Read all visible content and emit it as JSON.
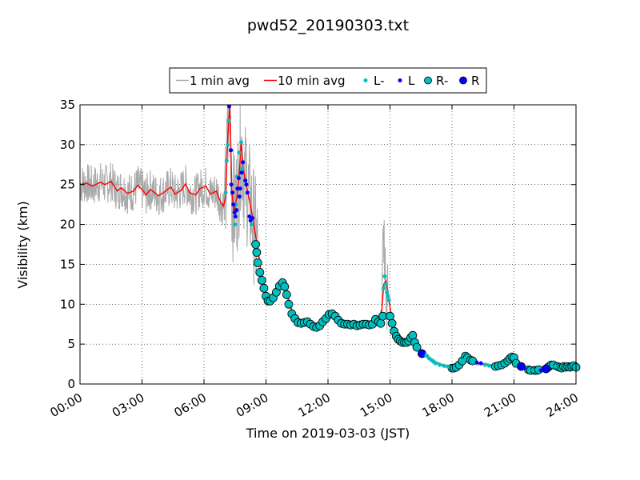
{
  "chart_data": {
    "type": "line",
    "title": "pwd52_20190303.txt",
    "xlabel": "Time on 2019-03-03 (JST)",
    "ylabel": "Visibility (km)",
    "x_unit": "hours",
    "xlim": [
      0,
      24
    ],
    "ylim": [
      0,
      35
    ],
    "x_ticks": [
      {
        "value": 0,
        "label": "00:00"
      },
      {
        "value": 3,
        "label": "03:00"
      },
      {
        "value": 6,
        "label": "06:00"
      },
      {
        "value": 9,
        "label": "09:00"
      },
      {
        "value": 12,
        "label": "12:00"
      },
      {
        "value": 15,
        "label": "15:00"
      },
      {
        "value": 18,
        "label": "18:00"
      },
      {
        "value": 21,
        "label": "21:00"
      },
      {
        "value": 24,
        "label": "24:00"
      }
    ],
    "y_ticks": [
      {
        "value": 0,
        "label": "0"
      },
      {
        "value": 5,
        "label": "5"
      },
      {
        "value": 10,
        "label": "10"
      },
      {
        "value": 15,
        "label": "15"
      },
      {
        "value": 20,
        "label": "20"
      },
      {
        "value": 25,
        "label": "25"
      },
      {
        "value": 30,
        "label": "30"
      },
      {
        "value": 35,
        "label": "35"
      }
    ],
    "grid": true,
    "legend_position": "top-center",
    "legend": [
      {
        "key": "avg1",
        "label": "1 min avg",
        "kind": "line",
        "color": "#a9a9a9"
      },
      {
        "key": "avg10",
        "label": "10 min avg",
        "kind": "line",
        "color": "#ff0000"
      },
      {
        "key": "Lminus",
        "label": "L-",
        "kind": "small-dot",
        "color": "#00bfbf"
      },
      {
        "key": "L",
        "label": "L",
        "kind": "small-dot",
        "color": "#0000ff"
      },
      {
        "key": "Rminus",
        "label": "R-",
        "kind": "big-dot",
        "color": "#00bfbf"
      },
      {
        "key": "R",
        "label": "R",
        "kind": "big-dot",
        "color": "#0000ff"
      }
    ],
    "series": [
      {
        "key": "avg10",
        "values": [
          [
            0.0,
            25.0
          ],
          [
            0.3,
            25.2
          ],
          [
            0.6,
            24.8
          ],
          [
            1.0,
            25.3
          ],
          [
            1.2,
            25.0
          ],
          [
            1.5,
            25.4
          ],
          [
            1.8,
            24.2
          ],
          [
            2.0,
            24.6
          ],
          [
            2.3,
            23.9
          ],
          [
            2.6,
            24.2
          ],
          [
            2.8,
            24.9
          ],
          [
            3.0,
            24.4
          ],
          [
            3.2,
            23.7
          ],
          [
            3.4,
            24.4
          ],
          [
            3.6,
            24.0
          ],
          [
            3.8,
            23.6
          ],
          [
            4.1,
            24.1
          ],
          [
            4.4,
            24.7
          ],
          [
            4.6,
            23.8
          ],
          [
            4.9,
            24.3
          ],
          [
            5.1,
            25.1
          ],
          [
            5.3,
            24.0
          ],
          [
            5.6,
            23.7
          ],
          [
            5.8,
            24.5
          ],
          [
            6.1,
            24.8
          ],
          [
            6.3,
            23.8
          ],
          [
            6.6,
            24.2
          ],
          [
            6.8,
            22.8
          ],
          [
            6.95,
            22.3
          ],
          [
            7.05,
            23.5
          ],
          [
            7.15,
            31.0
          ],
          [
            7.25,
            35.5
          ],
          [
            7.35,
            24.0
          ],
          [
            7.45,
            21.5
          ],
          [
            7.6,
            23.5
          ],
          [
            7.7,
            26.0
          ],
          [
            7.8,
            30.5
          ],
          [
            7.9,
            27.0
          ],
          [
            8.0,
            25.5
          ],
          [
            8.2,
            23.0
          ],
          [
            8.35,
            21.0
          ],
          [
            8.5,
            18.5
          ],
          [
            8.6,
            17.0
          ],
          [
            8.7,
            15.0
          ],
          [
            8.8,
            13.0
          ],
          [
            9.0,
            11.0
          ],
          [
            9.2,
            10.4
          ],
          [
            9.5,
            11.8
          ],
          [
            9.8,
            12.7
          ],
          [
            10.0,
            11.3
          ],
          [
            10.3,
            8.8
          ],
          [
            10.6,
            7.5
          ],
          [
            11.0,
            7.8
          ],
          [
            11.4,
            7.0
          ],
          [
            11.8,
            7.8
          ],
          [
            12.1,
            8.8
          ],
          [
            12.4,
            8.2
          ],
          [
            12.7,
            7.5
          ],
          [
            13.0,
            7.5
          ],
          [
            13.4,
            7.4
          ],
          [
            13.8,
            7.5
          ],
          [
            14.2,
            7.6
          ],
          [
            14.4,
            8.0
          ],
          [
            14.6,
            9.2
          ],
          [
            14.7,
            12.5
          ],
          [
            14.8,
            13.0
          ],
          [
            14.95,
            10.5
          ],
          [
            15.1,
            8.0
          ],
          [
            15.3,
            6.0
          ],
          [
            15.6,
            5.2
          ],
          [
            15.9,
            5.3
          ],
          [
            16.1,
            5.9
          ],
          [
            16.3,
            4.8
          ],
          [
            16.6,
            4.0
          ],
          [
            16.9,
            3.2
          ],
          [
            17.3,
            2.6
          ],
          [
            17.7,
            2.2
          ],
          [
            18.0,
            2.0
          ],
          [
            18.3,
            2.4
          ],
          [
            18.6,
            3.3
          ],
          [
            18.9,
            3.0
          ],
          [
            19.2,
            2.6
          ],
          [
            19.6,
            2.5
          ],
          [
            20.0,
            2.2
          ],
          [
            20.3,
            2.4
          ],
          [
            20.6,
            2.8
          ],
          [
            20.9,
            3.3
          ],
          [
            21.1,
            2.6
          ],
          [
            21.4,
            2.0
          ],
          [
            21.8,
            1.7
          ],
          [
            22.2,
            1.8
          ],
          [
            22.5,
            1.9
          ],
          [
            22.8,
            2.3
          ],
          [
            23.2,
            2.1
          ],
          [
            23.6,
            2.1
          ],
          [
            24.0,
            2.2
          ]
        ]
      },
      {
        "key": "Lminus",
        "values": [
          [
            7.1,
            28.0
          ],
          [
            7.15,
            30.0
          ],
          [
            7.2,
            33.0
          ],
          [
            7.05,
            24.0
          ],
          [
            7.6,
            26.0
          ],
          [
            7.7,
            29.0
          ],
          [
            7.8,
            30.3
          ],
          [
            7.85,
            27.0
          ],
          [
            7.5,
            20.0
          ],
          [
            7.55,
            22.5
          ],
          [
            8.3,
            20.0
          ],
          [
            14.7,
            12.0
          ],
          [
            14.75,
            13.5
          ],
          [
            14.8,
            12.5
          ],
          [
            14.85,
            11.5
          ],
          [
            14.9,
            11.0
          ],
          [
            14.95,
            10.5
          ],
          [
            16.7,
            3.7
          ],
          [
            16.8,
            3.5
          ],
          [
            16.9,
            3.2
          ],
          [
            17.0,
            3.0
          ],
          [
            17.1,
            2.8
          ],
          [
            17.2,
            2.6
          ],
          [
            17.4,
            2.4
          ],
          [
            17.6,
            2.3
          ],
          [
            17.8,
            2.2
          ],
          [
            18.6,
            3.0
          ],
          [
            19.6,
            2.4
          ],
          [
            19.8,
            2.3
          ],
          [
            21.9,
            1.7
          ],
          [
            23.0,
            2.2
          ]
        ]
      },
      {
        "key": "L",
        "values": [
          [
            7.22,
            34.8
          ],
          [
            7.3,
            29.3
          ],
          [
            7.32,
            25.0
          ],
          [
            7.38,
            24.0
          ],
          [
            7.42,
            22.5
          ],
          [
            7.48,
            21.5
          ],
          [
            7.52,
            21.0
          ],
          [
            7.58,
            21.8
          ],
          [
            7.62,
            24.5
          ],
          [
            7.68,
            25.8
          ],
          [
            7.72,
            23.5
          ],
          [
            7.75,
            24.5
          ],
          [
            7.82,
            26.5
          ],
          [
            7.88,
            27.8
          ],
          [
            8.0,
            25.5
          ],
          [
            8.05,
            25.0
          ],
          [
            8.1,
            24.0
          ],
          [
            8.2,
            21.0
          ],
          [
            8.25,
            20.5
          ],
          [
            8.35,
            20.8
          ],
          [
            16.5,
            3.9
          ],
          [
            16.6,
            3.8
          ],
          [
            19.2,
            2.7
          ],
          [
            19.4,
            2.6
          ],
          [
            21.3,
            2.2
          ],
          [
            21.5,
            2.0
          ],
          [
            22.3,
            1.7
          ],
          [
            22.5,
            1.9
          ]
        ]
      },
      {
        "key": "Rminus",
        "values": [
          [
            8.5,
            17.5
          ],
          [
            8.55,
            16.5
          ],
          [
            8.6,
            15.2
          ],
          [
            8.7,
            14.0
          ],
          [
            8.8,
            13.0
          ],
          [
            8.9,
            12.0
          ],
          [
            9.0,
            11.0
          ],
          [
            9.1,
            10.4
          ],
          [
            9.2,
            10.4
          ],
          [
            9.35,
            10.8
          ],
          [
            9.5,
            11.5
          ],
          [
            9.65,
            12.3
          ],
          [
            9.8,
            12.7
          ],
          [
            9.9,
            12.2
          ],
          [
            10.0,
            11.2
          ],
          [
            10.1,
            10.0
          ],
          [
            10.25,
            8.8
          ],
          [
            10.4,
            8.2
          ],
          [
            10.55,
            7.7
          ],
          [
            10.7,
            7.6
          ],
          [
            10.85,
            7.7
          ],
          [
            11.0,
            7.8
          ],
          [
            11.15,
            7.5
          ],
          [
            11.3,
            7.2
          ],
          [
            11.45,
            7.1
          ],
          [
            11.6,
            7.3
          ],
          [
            11.75,
            7.8
          ],
          [
            11.9,
            8.2
          ],
          [
            12.05,
            8.7
          ],
          [
            12.2,
            8.8
          ],
          [
            12.35,
            8.5
          ],
          [
            12.5,
            8.0
          ],
          [
            12.65,
            7.6
          ],
          [
            12.8,
            7.5
          ],
          [
            12.95,
            7.5
          ],
          [
            13.1,
            7.4
          ],
          [
            13.25,
            7.5
          ],
          [
            13.4,
            7.3
          ],
          [
            13.55,
            7.4
          ],
          [
            13.7,
            7.5
          ],
          [
            13.85,
            7.5
          ],
          [
            14.0,
            7.4
          ],
          [
            14.15,
            7.5
          ],
          [
            14.3,
            8.1
          ],
          [
            14.45,
            7.8
          ],
          [
            14.55,
            7.6
          ],
          [
            14.65,
            8.5
          ],
          [
            15.0,
            8.5
          ],
          [
            15.1,
            7.6
          ],
          [
            15.2,
            6.6
          ],
          [
            15.3,
            6.0
          ],
          [
            15.4,
            5.6
          ],
          [
            15.5,
            5.4
          ],
          [
            15.6,
            5.2
          ],
          [
            15.7,
            5.2
          ],
          [
            15.8,
            5.2
          ],
          [
            15.9,
            5.4
          ],
          [
            16.0,
            5.8
          ],
          [
            16.1,
            6.1
          ],
          [
            16.2,
            5.2
          ],
          [
            16.3,
            4.6
          ],
          [
            18.0,
            2.0
          ],
          [
            18.1,
            2.0
          ],
          [
            18.2,
            2.1
          ],
          [
            18.35,
            2.4
          ],
          [
            18.5,
            2.9
          ],
          [
            18.65,
            3.5
          ],
          [
            18.75,
            3.3
          ],
          [
            18.9,
            3.0
          ],
          [
            19.0,
            2.9
          ],
          [
            20.1,
            2.2
          ],
          [
            20.25,
            2.3
          ],
          [
            20.4,
            2.4
          ],
          [
            20.55,
            2.6
          ],
          [
            20.7,
            2.9
          ],
          [
            20.8,
            3.2
          ],
          [
            20.9,
            3.4
          ],
          [
            21.0,
            3.3
          ],
          [
            21.1,
            2.6
          ],
          [
            21.7,
            1.8
          ],
          [
            21.8,
            1.7
          ],
          [
            22.0,
            1.7
          ],
          [
            22.1,
            1.7
          ],
          [
            22.2,
            1.8
          ],
          [
            22.6,
            2.0
          ],
          [
            22.7,
            2.2
          ],
          [
            22.8,
            2.4
          ],
          [
            22.9,
            2.4
          ],
          [
            23.1,
            2.2
          ],
          [
            23.2,
            2.1
          ],
          [
            23.3,
            2.0
          ],
          [
            23.4,
            2.2
          ],
          [
            23.5,
            2.1
          ],
          [
            23.6,
            2.2
          ],
          [
            23.7,
            2.1
          ],
          [
            23.8,
            2.2
          ],
          [
            23.9,
            2.3
          ],
          [
            24.0,
            2.1
          ]
        ]
      },
      {
        "key": "R",
        "values": [
          [
            16.55,
            3.8
          ],
          [
            21.35,
            2.2
          ],
          [
            22.55,
            1.9
          ]
        ]
      }
    ]
  }
}
